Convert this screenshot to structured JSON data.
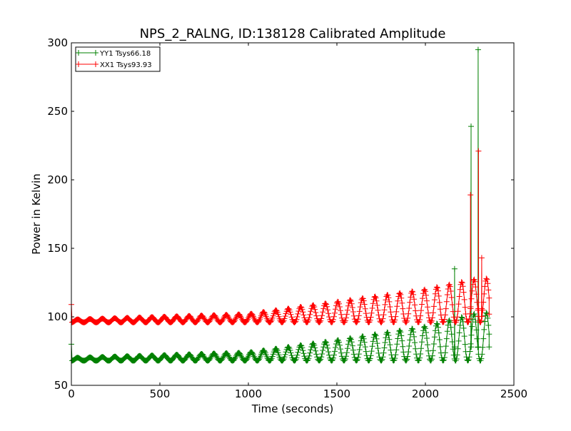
{
  "chart_data": {
    "type": "line",
    "title": "NPS_2_RALNG, ID:138128 Calibrated Amplitude",
    "xlabel": "Time (seconds)",
    "ylabel": "Power in Kelvin",
    "xlim": [
      0,
      2500
    ],
    "ylim": [
      50,
      300
    ],
    "xticks": [
      0,
      500,
      1000,
      1500,
      2000,
      2500
    ],
    "yticks": [
      50,
      100,
      150,
      200,
      250,
      300
    ],
    "x_tick_labels": [
      "0",
      "500",
      "1000",
      "1500",
      "2000",
      "2500"
    ],
    "y_tick_labels": [
      "50",
      "100",
      "150",
      "200",
      "250",
      "300"
    ],
    "grid": false,
    "legend_position": "top-left",
    "marker": "+",
    "oscillation_period_seconds": 70,
    "series": [
      {
        "name": "YY1 Tsys66.18",
        "color": "#008000",
        "baseline": 68,
        "start_value": 80,
        "amplitude_envelope": [
          {
            "x": 0,
            "amp": 2
          },
          {
            "x": 1000,
            "amp": 6
          },
          {
            "x": 1500,
            "amp": 15
          },
          {
            "x": 2000,
            "amp": 25
          },
          {
            "x": 2300,
            "amp": 35
          }
        ],
        "spikes": [
          {
            "x": 2165,
            "y": 135
          },
          {
            "x": 2258,
            "y": 239
          },
          {
            "x": 2298,
            "y": 295
          }
        ],
        "x_end": 2360,
        "end_value": 78
      },
      {
        "name": "XX1 Tsys93.93",
        "color": "#ff0000",
        "baseline": 96,
        "start_value": 109,
        "amplitude_envelope": [
          {
            "x": 0,
            "amp": 2
          },
          {
            "x": 1000,
            "amp": 6
          },
          {
            "x": 1500,
            "amp": 15
          },
          {
            "x": 2000,
            "amp": 24
          },
          {
            "x": 2300,
            "amp": 32
          }
        ],
        "spikes": [
          {
            "x": 2255,
            "y": 189
          },
          {
            "x": 2300,
            "y": 221
          },
          {
            "x": 2318,
            "y": 143
          }
        ],
        "x_end": 2360,
        "end_value": 102
      }
    ]
  }
}
